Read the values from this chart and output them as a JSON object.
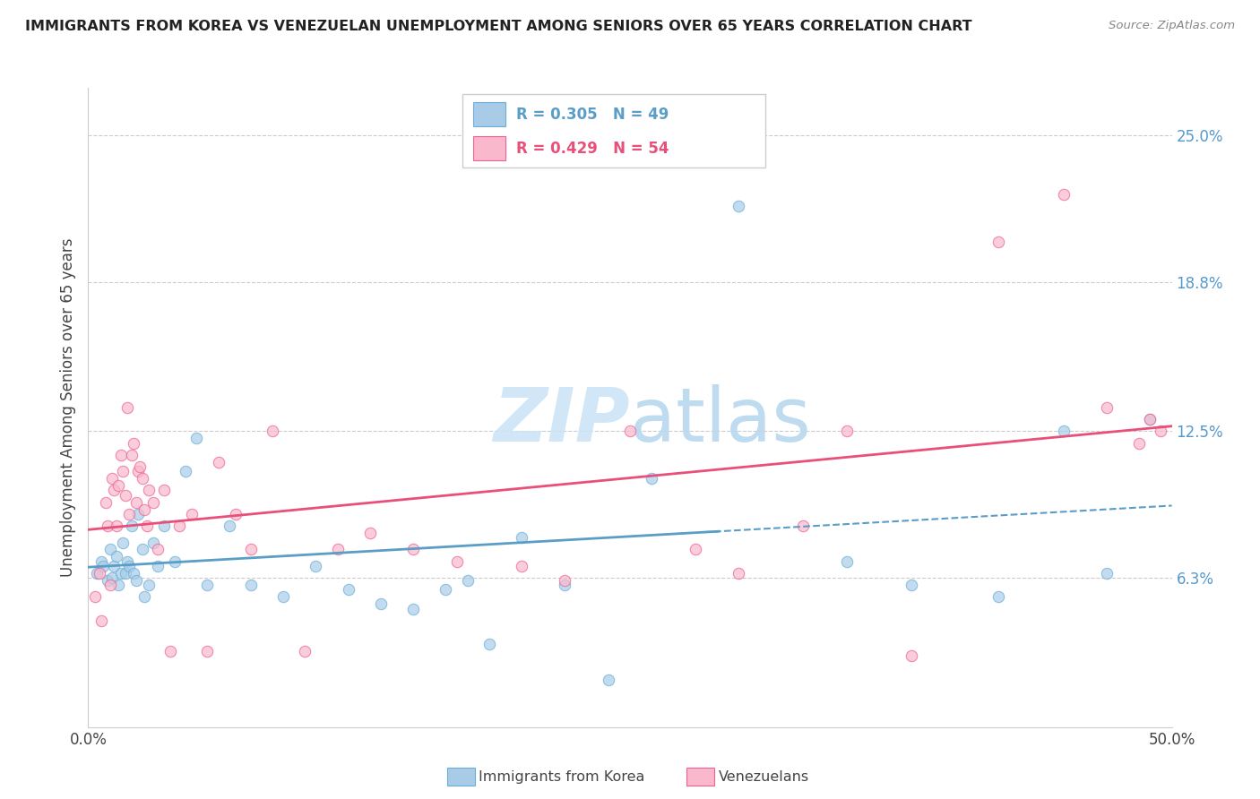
{
  "title": "IMMIGRANTS FROM KOREA VS VENEZUELAN UNEMPLOYMENT AMONG SENIORS OVER 65 YEARS CORRELATION CHART",
  "source": "Source: ZipAtlas.com",
  "ylabel": "Unemployment Among Seniors over 65 years",
  "ytick_labels": [
    "6.3%",
    "12.5%",
    "18.8%",
    "25.0%"
  ],
  "ytick_values": [
    6.3,
    12.5,
    18.8,
    25.0
  ],
  "xlim": [
    0.0,
    50.0
  ],
  "ylim": [
    0.0,
    27.0
  ],
  "korea_R": 0.305,
  "korea_N": 49,
  "venezuela_R": 0.429,
  "venezuela_N": 54,
  "korea_color": "#a8cce8",
  "venezuela_color": "#f9b8cc",
  "korea_edge": "#6aaed6",
  "venezuela_edge": "#f06090",
  "korea_line": "#5a9ec8",
  "venezuela_line": "#e8507a",
  "watermark_color": "#cce4f5",
  "korea_x": [
    0.4,
    0.6,
    0.7,
    0.9,
    1.0,
    1.1,
    1.2,
    1.3,
    1.4,
    1.5,
    1.6,
    1.7,
    1.8,
    1.9,
    2.0,
    2.1,
    2.2,
    2.3,
    2.5,
    2.6,
    2.8,
    3.0,
    3.2,
    3.5,
    4.0,
    4.5,
    5.0,
    5.5,
    6.5,
    7.5,
    9.0,
    10.5,
    12.0,
    13.5,
    15.0,
    16.5,
    17.5,
    18.5,
    20.0,
    22.0,
    24.0,
    26.0,
    30.0,
    35.0,
    38.0,
    42.0,
    45.0,
    47.0,
    49.0
  ],
  "korea_y": [
    6.5,
    7.0,
    6.8,
    6.2,
    7.5,
    6.3,
    6.8,
    7.2,
    6.0,
    6.5,
    7.8,
    6.5,
    7.0,
    6.8,
    8.5,
    6.5,
    6.2,
    9.0,
    7.5,
    5.5,
    6.0,
    7.8,
    6.8,
    8.5,
    7.0,
    10.8,
    12.2,
    6.0,
    8.5,
    6.0,
    5.5,
    6.8,
    5.8,
    5.2,
    5.0,
    5.8,
    6.2,
    3.5,
    8.0,
    6.0,
    2.0,
    10.5,
    22.0,
    7.0,
    6.0,
    5.5,
    12.5,
    6.5,
    13.0
  ],
  "venezuela_x": [
    0.3,
    0.5,
    0.6,
    0.8,
    0.9,
    1.0,
    1.1,
    1.2,
    1.3,
    1.4,
    1.5,
    1.6,
    1.7,
    1.8,
    1.9,
    2.0,
    2.1,
    2.2,
    2.3,
    2.4,
    2.5,
    2.6,
    2.7,
    2.8,
    3.0,
    3.2,
    3.5,
    3.8,
    4.2,
    4.8,
    5.5,
    6.0,
    6.8,
    7.5,
    8.5,
    10.0,
    11.5,
    13.0,
    15.0,
    17.0,
    20.0,
    22.0,
    25.0,
    28.0,
    30.0,
    33.0,
    35.0,
    38.0,
    42.0,
    45.0,
    47.0,
    48.5,
    49.0,
    49.5
  ],
  "venezuela_y": [
    5.5,
    6.5,
    4.5,
    9.5,
    8.5,
    6.0,
    10.5,
    10.0,
    8.5,
    10.2,
    11.5,
    10.8,
    9.8,
    13.5,
    9.0,
    11.5,
    12.0,
    9.5,
    10.8,
    11.0,
    10.5,
    9.2,
    8.5,
    10.0,
    9.5,
    7.5,
    10.0,
    3.2,
    8.5,
    9.0,
    3.2,
    11.2,
    9.0,
    7.5,
    12.5,
    3.2,
    7.5,
    8.2,
    7.5,
    7.0,
    6.8,
    6.2,
    12.5,
    7.5,
    6.5,
    8.5,
    12.5,
    3.0,
    20.5,
    22.5,
    13.5,
    12.0,
    13.0,
    12.5
  ]
}
